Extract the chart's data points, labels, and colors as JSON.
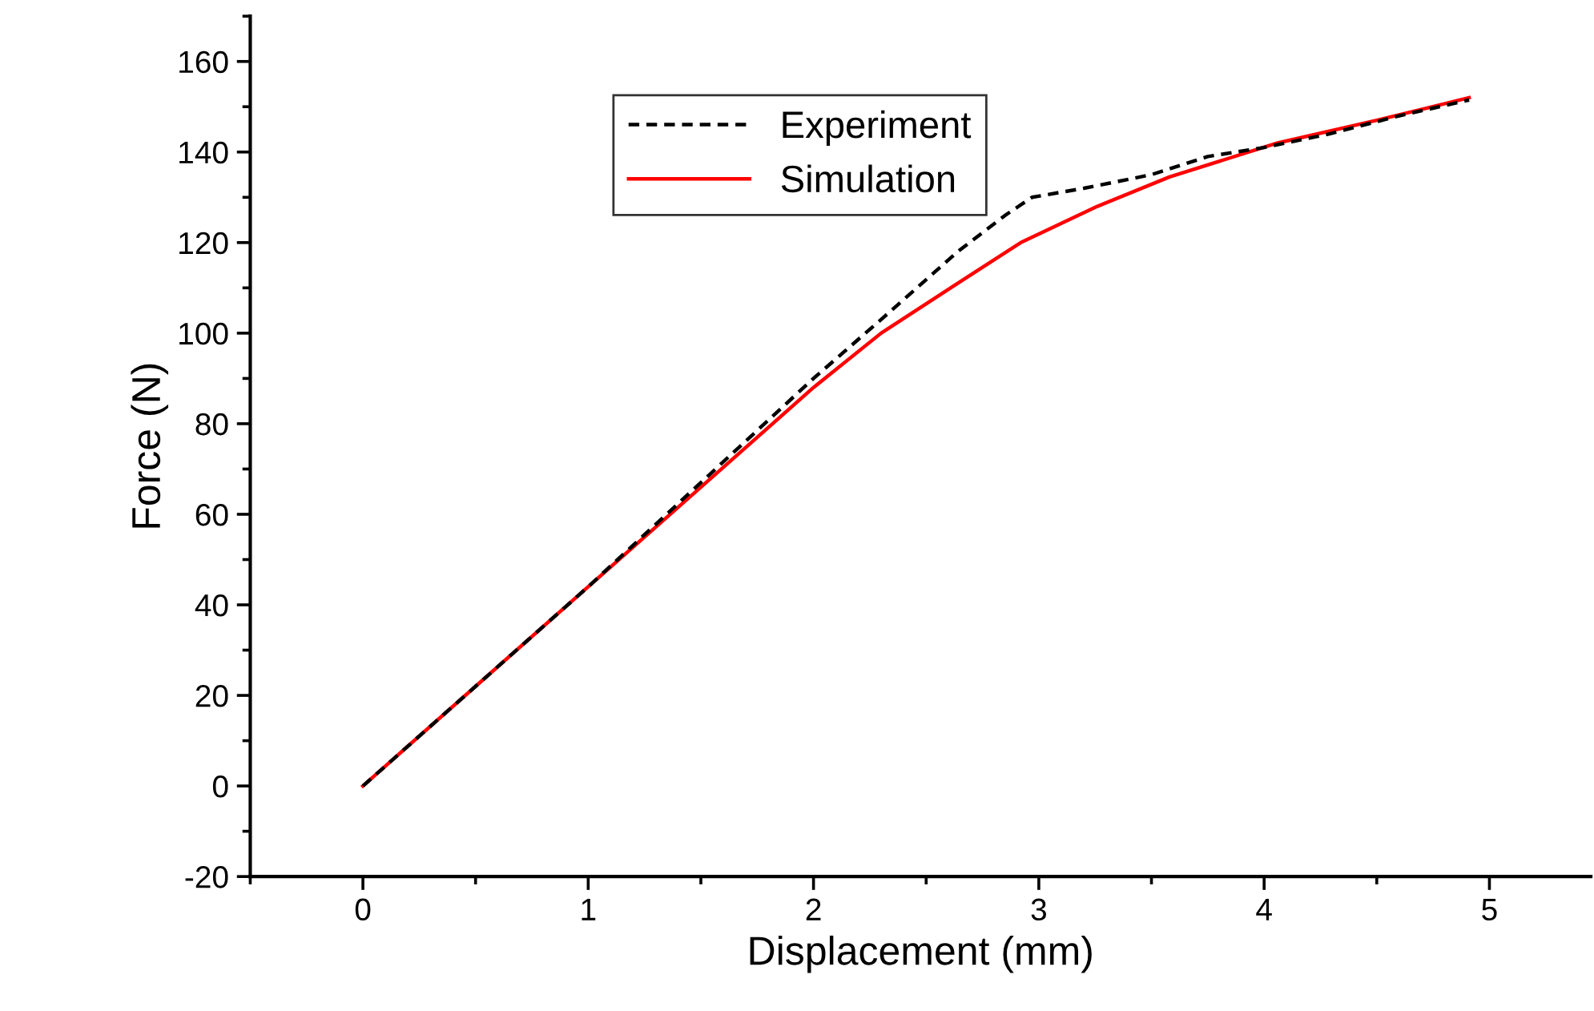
{
  "chart_data": {
    "type": "line",
    "xlabel": "Displacement (mm)",
    "ylabel": "Force (N)",
    "xlim": [
      -0.5,
      5.45
    ],
    "xticks": [
      0,
      1,
      2,
      3,
      4,
      5
    ],
    "ylim": [
      -20,
      170
    ],
    "yticks": [
      -20,
      0,
      20,
      40,
      60,
      80,
      100,
      120,
      140,
      160
    ],
    "grid": false,
    "legend": "top",
    "marker": "none",
    "series": [
      {
        "name": "Experiment",
        "color": "#000000",
        "line_style": "dashed",
        "x": [
          0,
          0.5,
          1,
          1.5,
          2,
          2.3,
          2.64,
          2.85,
          2.97,
          3.2,
          3.5,
          3.75,
          4.0,
          4.29,
          4.6,
          4.91
        ],
        "values": [
          0,
          22,
          44,
          67,
          90,
          103,
          118,
          126,
          130,
          132,
          135,
          139,
          141,
          144,
          148,
          151.5
        ]
      },
      {
        "name": "Simulation",
        "color": "#ff0000",
        "line_style": "solid",
        "x": [
          0,
          0.5,
          1,
          1.5,
          2,
          2.3,
          2.64,
          2.92,
          3.26,
          3.58,
          4.06,
          4.5,
          4.91
        ],
        "values": [
          0,
          22,
          44,
          66,
          88,
          100,
          111,
          120,
          128,
          134.5,
          142,
          147,
          152
        ]
      }
    ]
  }
}
